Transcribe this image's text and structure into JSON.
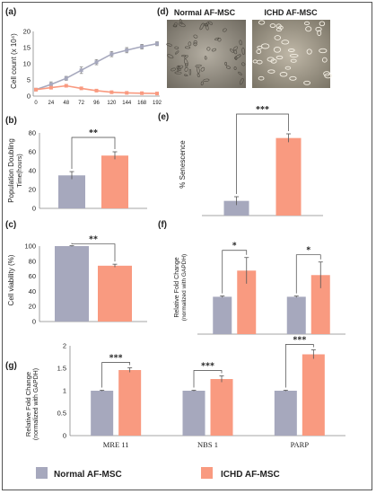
{
  "colors": {
    "normal": "#a6a8bd",
    "ichd": "#f99a80",
    "axis": "#888888",
    "err": "#555555"
  },
  "legend": {
    "normal_label": "Normal  AF-MSC",
    "ichd_label": "ICHD AF-MSC"
  },
  "panel_d": {
    "label": "(d)",
    "normal_label": "Normal  AF-MSC",
    "ichd_label": "ICHD AF-MSC",
    "normal_image_icon": "micrograph-cells-sparse",
    "ichd_image_icon": "micrograph-cells-dense"
  },
  "chart_data": [
    {
      "panel": "(a)",
      "type": "line",
      "ylabel": "Cell count (x 10⁴)",
      "xlabel": "",
      "ylim": [
        0,
        20
      ],
      "yticks": [
        "0",
        "5",
        "10",
        "15",
        "20"
      ],
      "x": [
        0,
        24,
        48,
        72,
        96,
        120,
        144,
        168,
        192
      ],
      "xtick_labels": [
        "0",
        "24",
        "48",
        "72",
        "96",
        "120",
        "144",
        "168",
        "192"
      ],
      "grid": false,
      "series": [
        {
          "group": "normal",
          "values": [
            2,
            3.6,
            5.5,
            8,
            10.5,
            13,
            14.2,
            15.3,
            16.2
          ],
          "errors": [
            0.3,
            0.8,
            0.6,
            1,
            0.8,
            0.8,
            0.8,
            0.7,
            0.6
          ]
        },
        {
          "group": "ichd",
          "values": [
            2,
            2.6,
            3.2,
            2.4,
            1.7,
            1.2,
            1,
            0.9,
            0.8
          ],
          "errors": [
            0.2,
            0.3,
            0.4,
            0.3,
            0.2,
            0.2,
            0.2,
            0.2,
            0.2
          ]
        }
      ]
    },
    {
      "panel": "(b)",
      "type": "bar",
      "ylabel": "Population Doubling",
      "ylabel2": "Time(hours)",
      "ylim": [
        0,
        80
      ],
      "yticks": [
        "0",
        "20",
        "40",
        "60",
        "80"
      ],
      "categories": [
        ""
      ],
      "series": [
        {
          "group": "normal",
          "values": [
            35
          ],
          "errors": [
            4
          ]
        },
        {
          "group": "ichd",
          "values": [
            56
          ],
          "errors": [
            4
          ]
        }
      ],
      "significance": [
        "**"
      ]
    },
    {
      "panel": "(c)",
      "type": "bar",
      "ylabel": "Cell viability (%)",
      "ylim": [
        0,
        100
      ],
      "yticks": [
        "0",
        "20",
        "40",
        "60",
        "80",
        "100"
      ],
      "categories": [
        ""
      ],
      "series": [
        {
          "group": "normal",
          "values": [
            100
          ],
          "errors": [
            0.5
          ]
        },
        {
          "group": "ichd",
          "values": [
            74
          ],
          "errors": [
            2
          ]
        }
      ],
      "significance": [
        "**"
      ]
    },
    {
      "panel": "(e)",
      "type": "bar",
      "ylabel": "% Senescence",
      "ylim": [
        0,
        45
      ],
      "yticks": [],
      "categories": [
        ""
      ],
      "series": [
        {
          "group": "normal",
          "values": [
            7
          ],
          "errors": [
            2
          ]
        },
        {
          "group": "ichd",
          "values": [
            37
          ],
          "errors": [
            2
          ]
        }
      ],
      "significance": [
        "***"
      ]
    },
    {
      "panel": "(f)",
      "type": "bar",
      "ylabel": "Relative Fold Change",
      "ylabel2": "(normalized with GAPDH)",
      "ylim": [
        0,
        2.5
      ],
      "yticks": [],
      "categories": [
        "",
        ""
      ],
      "series": [
        {
          "group": "normal",
          "values": [
            1,
            1
          ],
          "errors": [
            0.02,
            0.02
          ]
        },
        {
          "group": "ichd",
          "values": [
            1.7,
            1.58
          ],
          "errors": [
            0.35,
            0.35
          ]
        }
      ],
      "significance": [
        "*",
        "*"
      ]
    },
    {
      "panel": "(g)",
      "type": "bar",
      "ylabel": "Relative Fold Change",
      "ylabel2": "(normalized with GAPDH)",
      "ylim": [
        0,
        2
      ],
      "yticks": [
        "0",
        "0.5",
        "1",
        "1.5",
        "2"
      ],
      "categories": [
        "MRE 11",
        "NBS 1",
        "PARP"
      ],
      "series": [
        {
          "group": "normal",
          "values": [
            1,
            1,
            1
          ],
          "errors": [
            0.01,
            0.01,
            0.01
          ]
        },
        {
          "group": "ichd",
          "values": [
            1.46,
            1.26,
            1.81
          ],
          "errors": [
            0.05,
            0.07,
            0.1
          ]
        }
      ],
      "significance": [
        "***",
        "***",
        "***"
      ]
    }
  ]
}
